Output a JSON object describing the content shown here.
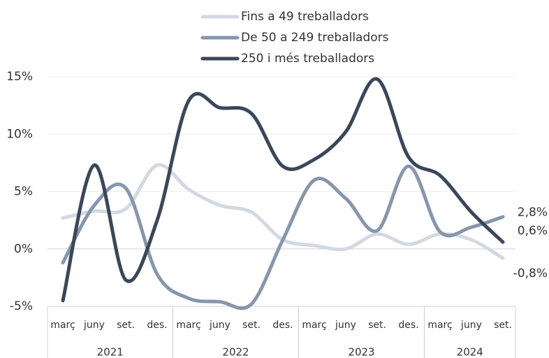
{
  "chart_data": {
    "type": "line",
    "categories": [
      "març",
      "juny",
      "set.",
      "des.",
      "març",
      "juny",
      "set.",
      "des.",
      "març",
      "juny",
      "set.",
      "des.",
      "març",
      "juny",
      "set."
    ],
    "years": [
      "2021",
      "2022",
      "2023",
      "2024"
    ],
    "ylim": [
      -5,
      15
    ],
    "yticks": [
      {
        "value": -5,
        "label": "-5%"
      },
      {
        "value": 0,
        "label": "0%"
      },
      {
        "value": 5,
        "label": "5%"
      },
      {
        "value": 10,
        "label": "10%"
      },
      {
        "value": 15,
        "label": "15%"
      }
    ],
    "grid": true,
    "legend": "top",
    "series": [
      {
        "name": "Fins a 49 treballadors",
        "color": "#d3d9e3",
        "values": [
          2.7,
          3.3,
          3.5,
          7.3,
          5.2,
          3.8,
          3.2,
          0.8,
          0.3,
          0,
          1.3,
          0.4,
          1.3,
          0.8,
          -0.8
        ],
        "value_labels": [
          null,
          null,
          null,
          null,
          null,
          null,
          null,
          null,
          null,
          null,
          null,
          null,
          null,
          null,
          "-0,8%"
        ]
      },
      {
        "name": "De 50 a 249 treballadors",
        "color": "#8696ab",
        "values": [
          -1.2,
          3.8,
          5.3,
          -2.2,
          -4.3,
          -4.6,
          -4.8,
          0.8,
          6,
          4.4,
          1.6,
          7.2,
          1.5,
          1.9,
          2.8
        ],
        "value_labels": [
          null,
          null,
          null,
          null,
          null,
          null,
          null,
          null,
          null,
          null,
          null,
          null,
          null,
          null,
          "2,8%"
        ]
      },
      {
        "name": "250 i més treballadors",
        "color": "#3b4759",
        "values": [
          -4.5,
          7.3,
          -2.7,
          2.5,
          12.9,
          12.3,
          11.8,
          7.2,
          7.8,
          10.2,
          14.8,
          8,
          6.4,
          3.2,
          0.6
        ],
        "value_labels": [
          null,
          null,
          null,
          null,
          null,
          null,
          null,
          null,
          null,
          null,
          null,
          null,
          null,
          null,
          "0,6%"
        ]
      }
    ]
  }
}
